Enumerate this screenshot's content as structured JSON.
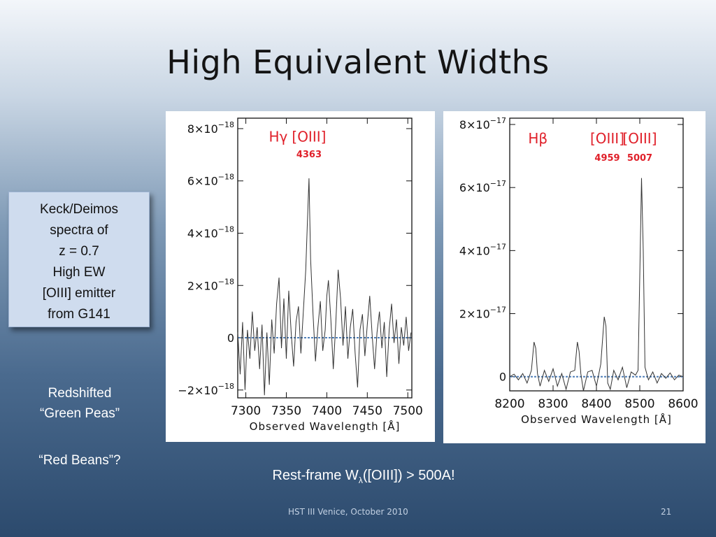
{
  "slide": {
    "title": "High Equivalent Widths",
    "note_lines": [
      "Keck/Deimos",
      "spectra of",
      "z = 0.7",
      "High EW",
      "[OIII] emitter",
      "from G141"
    ],
    "side_lines_1": [
      "Redshifted",
      "“Green Peas”"
    ],
    "side_lines_2": [
      "“Red Beans”?"
    ],
    "caption_prefix": "Rest-frame W",
    "caption_sub": "λ",
    "caption_suffix": "([OIII]) > 500A!",
    "footer_left": "HST III   Venice, October 2010",
    "page_number": "21",
    "colors": {
      "spectrum": "#333333",
      "continuum": "#4f7fb8",
      "line_label": "#e0202a"
    }
  },
  "chart_data": [
    {
      "type": "line",
      "xlabel": "Observed Wavelength [Å]",
      "ylabel": "",
      "xlim": [
        7290,
        7505
      ],
      "ylim": [
        -2.3e-18,
        8.4e-18
      ],
      "x_ticks": [
        7300,
        7350,
        7400,
        7450,
        7500
      ],
      "y_ticks": [
        {
          "value": 8e-18,
          "mantissa": "8×10",
          "exp": "−18"
        },
        {
          "value": 6e-18,
          "mantissa": "6×10",
          "exp": "−18"
        },
        {
          "value": 4e-18,
          "mantissa": "4×10",
          "exp": "−18"
        },
        {
          "value": 2e-18,
          "mantissa": "2×10",
          "exp": "−18"
        },
        {
          "value": 0,
          "mantissa": "0",
          "exp": ""
        },
        {
          "value": -2e-18,
          "mantissa": "−2×10",
          "exp": "−18"
        }
      ],
      "continuum": 0,
      "line_labels": [
        {
          "text": "Hγ",
          "x": 7340,
          "y": 7.5e-18
        },
        {
          "text": "[OIII]",
          "x": 7378,
          "y": 7.5e-18
        },
        {
          "text": "4363",
          "x": 7378,
          "y": 6.9e-18
        }
      ],
      "series": [
        {
          "x": [
            7290,
            7293,
            7296,
            7299,
            7302,
            7305,
            7308,
            7311,
            7314,
            7317,
            7320,
            7323,
            7326,
            7329,
            7332,
            7335,
            7338,
            7341,
            7344,
            7347,
            7350,
            7353,
            7356,
            7359,
            7362,
            7365,
            7368,
            7371,
            7374,
            7376,
            7378,
            7380,
            7383,
            7386,
            7389,
            7392,
            7395,
            7398,
            7400,
            7402,
            7405,
            7408,
            7411,
            7414,
            7417,
            7420,
            7423,
            7426,
            7429,
            7432,
            7435,
            7438,
            7441,
            7444,
            7447,
            7450,
            7453,
            7456,
            7459,
            7462,
            7465,
            7468,
            7471,
            7474,
            7477,
            7480,
            7483,
            7486,
            7489,
            7492,
            7495,
            7498,
            7501,
            7504
          ],
          "y": [
            2e-19,
            -1.4e-18,
            6e-19,
            -2e-18,
            3e-19,
            -8e-19,
            1e-18,
            -5e-19,
            4e-19,
            -1.2e-18,
            5e-19,
            -2.2e-18,
            2e-19,
            -1.8e-18,
            7e-19,
            -6e-19,
            1.3e-18,
            2.3e-18,
            -4e-19,
            1.5e-18,
            -8e-19,
            1.8e-18,
            2e-19,
            -1.1e-18,
            6e-19,
            1.2e-18,
            -6e-19,
            1e-18,
            2.6e-18,
            4.4e-18,
            6.1e-18,
            3e-18,
            9e-19,
            -9e-19,
            4e-19,
            1.4e-18,
            -5e-19,
            3e-19,
            1.6e-18,
            2.2e-18,
            7e-19,
            -1.2e-18,
            5e-19,
            2.6e-18,
            1.5e-18,
            -3e-19,
            1.2e-18,
            -8e-19,
            4e-19,
            1.1e-18,
            -6e-19,
            -1.9e-18,
            3e-19,
            9e-19,
            -7e-19,
            5e-19,
            1.6e-18,
            1e-19,
            -1.2e-18,
            2e-19,
            1e-18,
            -4e-19,
            6e-19,
            -1.5e-18,
            3e-19,
            1.3e-18,
            -2e-19,
            7e-19,
            -1e-18,
            4e-19,
            -3e-19,
            8e-19,
            -5e-19,
            2e-19
          ]
        }
      ]
    },
    {
      "type": "line",
      "xlabel": "Observed Wavelength [Å]",
      "ylabel": "",
      "xlim": [
        8200,
        8600
      ],
      "ylim": [
        -4.5e-18,
        8.2e-17
      ],
      "x_ticks": [
        8200,
        8300,
        8400,
        8500,
        8600
      ],
      "y_ticks": [
        {
          "value": 8e-17,
          "mantissa": "8×10",
          "exp": "−17"
        },
        {
          "value": 6e-17,
          "mantissa": "6×10",
          "exp": "−17"
        },
        {
          "value": 4e-17,
          "mantissa": "4×10",
          "exp": "−17"
        },
        {
          "value": 2e-17,
          "mantissa": "2×10",
          "exp": "−17"
        },
        {
          "value": 0,
          "mantissa": "0",
          "exp": ""
        }
      ],
      "continuum": 0,
      "line_labels": [
        {
          "text": "Hβ",
          "x": 8265,
          "y": 7.4e-17
        },
        {
          "text": "[OIII]",
          "x": 8425,
          "y": 7.4e-17
        },
        {
          "text": "4959",
          "x": 8425,
          "y": 6.85e-17
        },
        {
          "text": "[OIII]",
          "x": 8500,
          "y": 7.4e-17
        },
        {
          "text": "5007",
          "x": 8500,
          "y": 6.85e-17
        }
      ],
      "series": [
        {
          "x": [
            8200,
            8210,
            8220,
            8230,
            8240,
            8250,
            8256,
            8260,
            8264,
            8270,
            8280,
            8290,
            8300,
            8310,
            8320,
            8330,
            8340,
            8350,
            8356,
            8360,
            8364,
            8370,
            8380,
            8390,
            8400,
            8410,
            8418,
            8422,
            8426,
            8432,
            8440,
            8450,
            8460,
            8470,
            8480,
            8490,
            8496,
            8500,
            8504,
            8508,
            8512,
            8520,
            8530,
            8540,
            8550,
            8560,
            8570,
            8580,
            8590,
            8600
          ],
          "y": [
            0,
            8e-19,
            -1e-18,
            1e-18,
            -2e-18,
            2e-18,
            1.1e-17,
            9e-18,
            1e-18,
            -3e-18,
            2e-18,
            -1.5e-18,
            2.5e-18,
            -3e-18,
            1e-18,
            -4e-18,
            1.5e-18,
            2e-18,
            1.1e-17,
            8e-18,
            1e-18,
            -5e-18,
            1.5e-18,
            2e-18,
            -3e-18,
            4e-18,
            1.9e-17,
            1.6e-17,
            -2e-18,
            -4e-18,
            2e-18,
            -1e-18,
            3e-18,
            -3.5e-18,
            1.5e-18,
            5e-19,
            2e-18,
            3.2e-17,
            6.3e-17,
            4e-17,
            3e-18,
            -1e-18,
            1.5e-18,
            -2e-18,
            1e-18,
            -5e-19,
            1.2e-18,
            -1e-18,
            5e-19,
            0
          ]
        }
      ]
    }
  ]
}
